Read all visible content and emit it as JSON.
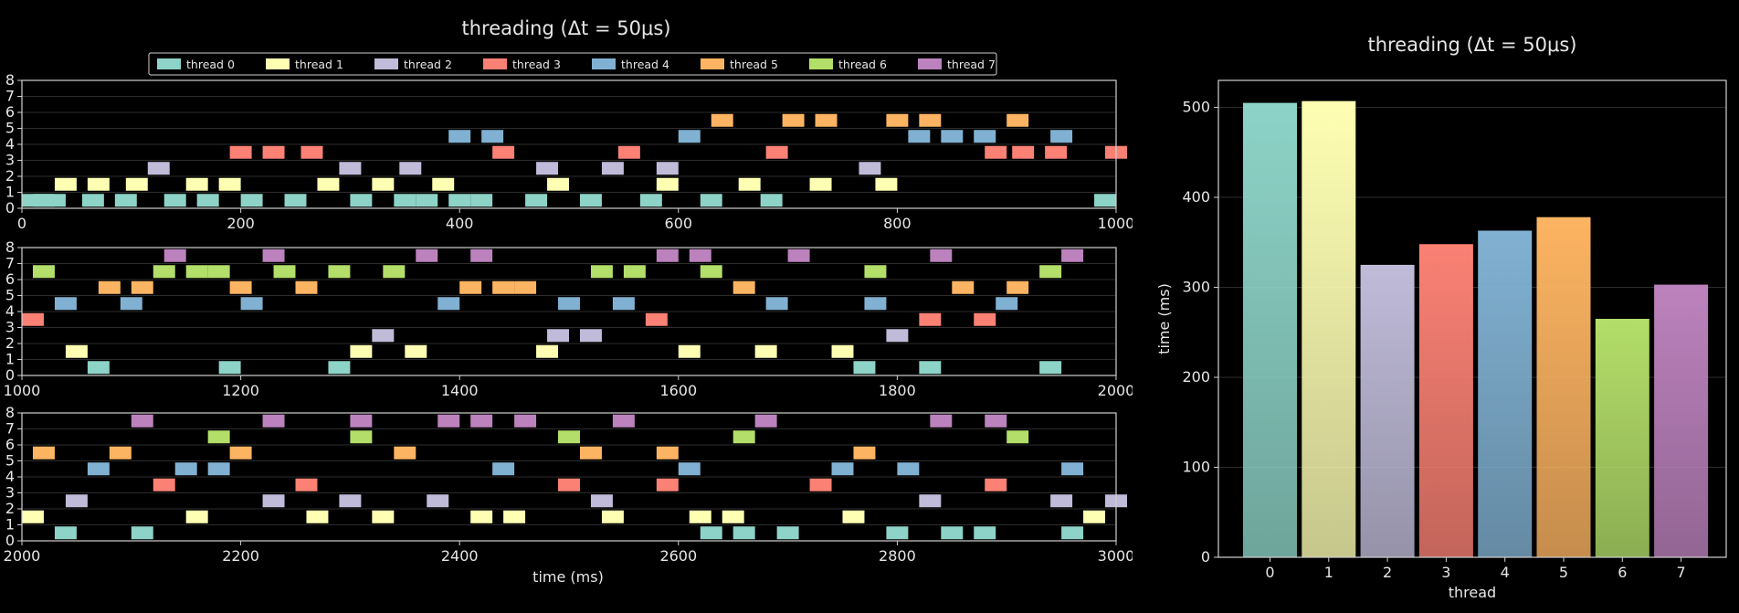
{
  "timeline": {
    "title": "threading (Δt = 50μs)",
    "xlabel": "time (ms)",
    "legend": [
      {
        "label": "thread 0",
        "color": "#8dd3c7"
      },
      {
        "label": "thread 1",
        "color": "#feffb3"
      },
      {
        "label": "thread 2",
        "color": "#bfbbd9"
      },
      {
        "label": "thread 3",
        "color": "#fa8174"
      },
      {
        "label": "thread 4",
        "color": "#81b1d2"
      },
      {
        "label": "thread 5",
        "color": "#fdb462"
      },
      {
        "label": "thread 6",
        "color": "#b3de69"
      },
      {
        "label": "thread 7",
        "color": "#bc82bd"
      }
    ]
  },
  "barchart": {
    "title": "threading (Δt = 50μs)",
    "xlabel": "thread",
    "ylabel": "time (ms)"
  },
  "chart_data": [
    {
      "type": "scatter",
      "title": "threading (Δt = 50μs)",
      "xlabel": "time (ms)",
      "ylabel": "",
      "legend_position": "top",
      "block_width_ms": 20,
      "rows": [
        {
          "xlim": [
            0,
            1000
          ],
          "xticks": [
            0,
            200,
            400,
            600,
            800,
            1000
          ],
          "ylim": [
            0,
            8
          ],
          "yticks": [
            0,
            1,
            2,
            3,
            4,
            5,
            6,
            7,
            8
          ]
        },
        {
          "xlim": [
            1000,
            2000
          ],
          "xticks": [
            1000,
            1200,
            1400,
            1600,
            1800,
            2000
          ],
          "ylim": [
            0,
            8
          ],
          "yticks": [
            0,
            1,
            2,
            3,
            4,
            5,
            6,
            7,
            8
          ]
        },
        {
          "xlim": [
            2000,
            3000
          ],
          "xticks": [
            2000,
            2200,
            2400,
            2600,
            2800,
            3000
          ],
          "ylim": [
            0,
            8
          ],
          "yticks": [
            0,
            1,
            2,
            3,
            4,
            5,
            6,
            7,
            8
          ]
        }
      ],
      "series": [
        {
          "name": "thread 0",
          "x": [
            0,
            10,
            20,
            55,
            85,
            130,
            160,
            200,
            240,
            300,
            340,
            360,
            390,
            410,
            460,
            510,
            565,
            620,
            675,
            980,
            1060,
            1180,
            1280,
            1760,
            1820,
            1930,
            2030,
            2100,
            2620,
            2650,
            2690,
            2790,
            2840,
            2870,
            2950
          ]
        },
        {
          "name": "thread 1",
          "x": [
            30,
            60,
            95,
            150,
            180,
            270,
            320,
            375,
            480,
            580,
            655,
            720,
            780,
            1040,
            1300,
            1350,
            1470,
            1600,
            1670,
            1740,
            2000,
            2150,
            2260,
            2320,
            2410,
            2440,
            2530,
            2610,
            2640,
            2750,
            2970
          ]
        },
        {
          "name": "thread 2",
          "x": [
            115,
            290,
            345,
            470,
            530,
            580,
            765,
            1320,
            1480,
            1510,
            1790,
            2040,
            2220,
            2290,
            2370,
            2520,
            2820,
            2940,
            2990
          ]
        },
        {
          "name": "thread 3",
          "x": [
            190,
            220,
            255,
            430,
            545,
            680,
            880,
            905,
            935,
            990,
            1000,
            1570,
            1820,
            1870,
            2120,
            2250,
            2490,
            2580,
            2720,
            2880
          ]
        },
        {
          "name": "thread 4",
          "x": [
            390,
            420,
            600,
            810,
            840,
            870,
            940,
            1030,
            1090,
            1200,
            1380,
            1490,
            1540,
            1680,
            1770,
            1890,
            2060,
            2140,
            2170,
            2430,
            2600,
            2740,
            2800,
            2950
          ]
        },
        {
          "name": "thread 5",
          "x": [
            630,
            695,
            725,
            790,
            820,
            900,
            1070,
            1100,
            1190,
            1250,
            1400,
            1430,
            1450,
            1650,
            1850,
            1900,
            2010,
            2080,
            2190,
            2340,
            2510,
            2580,
            2760
          ]
        },
        {
          "name": "thread 6",
          "x": [
            1010,
            1120,
            1150,
            1170,
            1230,
            1280,
            1330,
            1520,
            1550,
            1620,
            1770,
            1930,
            2170,
            2300,
            2490,
            2650,
            2900
          ]
        },
        {
          "name": "thread 7",
          "x": [
            1130,
            1220,
            1360,
            1410,
            1580,
            1610,
            1700,
            1830,
            1950,
            2100,
            2220,
            2300,
            2380,
            2410,
            2450,
            2540,
            2670,
            2830,
            2880
          ]
        }
      ]
    },
    {
      "type": "bar",
      "title": "threading (Δt = 50μs)",
      "xlabel": "thread",
      "ylabel": "time (ms)",
      "categories": [
        "0",
        "1",
        "2",
        "3",
        "4",
        "5",
        "6",
        "7"
      ],
      "values": [
        505,
        507,
        325,
        348,
        363,
        378,
        265,
        303
      ],
      "colors": [
        "#8dd3c7",
        "#feffb3",
        "#bfbbd9",
        "#fa8174",
        "#81b1d2",
        "#fdb462",
        "#b3de69",
        "#bc82bd"
      ],
      "ylim": [
        0,
        530
      ],
      "yticks": [
        0,
        100,
        200,
        300,
        400,
        500
      ],
      "grid": "horizontal"
    }
  ]
}
